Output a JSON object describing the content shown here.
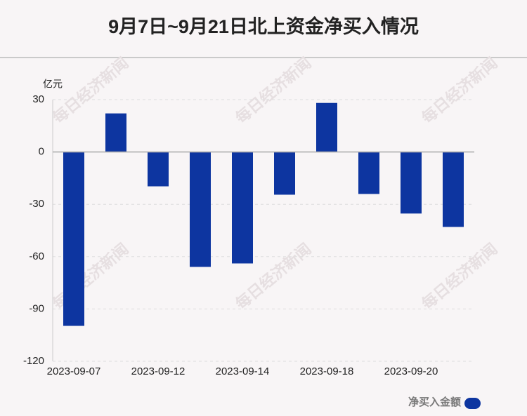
{
  "chart_data": {
    "type": "bar",
    "title": "9月7日~9月21日北上资金净买入情况",
    "y_label": "亿元",
    "watermark": "每日经济新闻",
    "categories": [
      "2023-09-07",
      null,
      "2023-09-12",
      null,
      "2023-09-14",
      null,
      "2023-09-18",
      null,
      "2023-09-20",
      null
    ],
    "series": [
      {
        "name": "净买入金额",
        "color": "#0d35a0",
        "values": [
          -99.7,
          22.1,
          -19.7,
          -65.9,
          -63.9,
          -24.5,
          28.1,
          -24.1,
          -35.3,
          -43.0
        ]
      }
    ],
    "ylim": [
      -120,
      30
    ],
    "yticks": [
      -120,
      -90,
      -60,
      -30,
      0,
      30
    ],
    "grid": true
  }
}
